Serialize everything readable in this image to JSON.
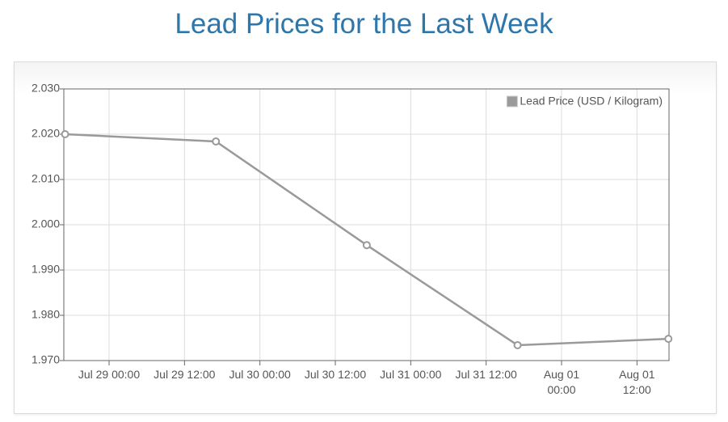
{
  "chart_data": {
    "type": "line",
    "title": "Lead Prices for the Last Week",
    "x": [
      "Jul 28 17:00",
      "Jul 29 17:00",
      "Jul 30 17:00",
      "Jul 31 17:00",
      "Aug 01 17:00"
    ],
    "series": [
      {
        "name": "Lead Price (USD / Kilogram)",
        "color": "#9a9a9a",
        "values": [
          2.02,
          2.0184,
          1.9955,
          1.9734,
          1.9748
        ]
      }
    ],
    "xlim": [
      "Jul 28 16:48",
      "Aug 01 17:06"
    ],
    "xticks": [
      "Jul 29 00:00",
      "Jul 29 12:00",
      "Jul 30 00:00",
      "Jul 30 12:00",
      "Jul 31 00:00",
      "Jul 31 12:00",
      "Aug 01 00:00",
      "Aug 01 12:00"
    ],
    "ylim": [
      1.97,
      2.03
    ],
    "yticks": [
      {
        "value": 1.97,
        "label": "1.970"
      },
      {
        "value": 1.98,
        "label": "1.980"
      },
      {
        "value": 1.99,
        "label": "1.990"
      },
      {
        "value": 2.0,
        "label": "2.000"
      },
      {
        "value": 2.01,
        "label": "2.010"
      },
      {
        "value": 2.02,
        "label": "2.020"
      },
      {
        "value": 2.03,
        "label": "2.030"
      }
    ],
    "grid": true,
    "legend": "top-right"
  }
}
